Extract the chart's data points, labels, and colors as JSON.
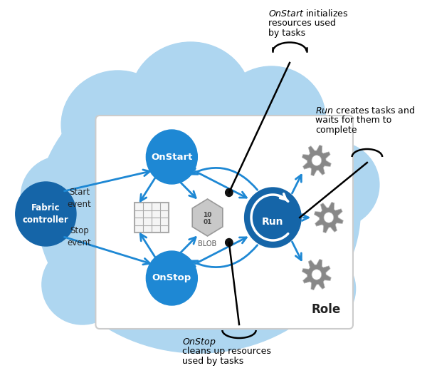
{
  "bg_cloud_color": "#aed6f0",
  "role_box_color": "#ffffff",
  "role_box_edge": "#cccccc",
  "circle_blue_dark": "#1565a8",
  "circle_blue_mid": "#1e88d4",
  "arrow_blue": "#1e88d4",
  "gear_color": "#888888",
  "node_dot_color": "#111111",
  "text_color": "#222222",
  "label_onstart": "OnStart",
  "label_onstop": "OnStop",
  "label_run": "Run",
  "label_fabric": "Fabric\ncontroller",
  "label_start_event": "Start\nevent",
  "label_stop_event": "Stop\nevent",
  "label_role": "Role",
  "ann1_line1_italic": "OnStart",
  "ann1_line1_rest": " initializes",
  "ann1_line2": "resources used",
  "ann1_line3": "by tasks",
  "ann2_line1_italic": "Run",
  "ann2_line1_rest": " creates tasks and",
  "ann2_line2": "waits for them to",
  "ann2_line3": "complete",
  "ann3_line1_italic": "OnStop",
  "ann3_line2": "cleans up resources",
  "ann3_line3": "used by tasks",
  "fig_w": 6.07,
  "fig_h": 5.3,
  "dpi": 100
}
